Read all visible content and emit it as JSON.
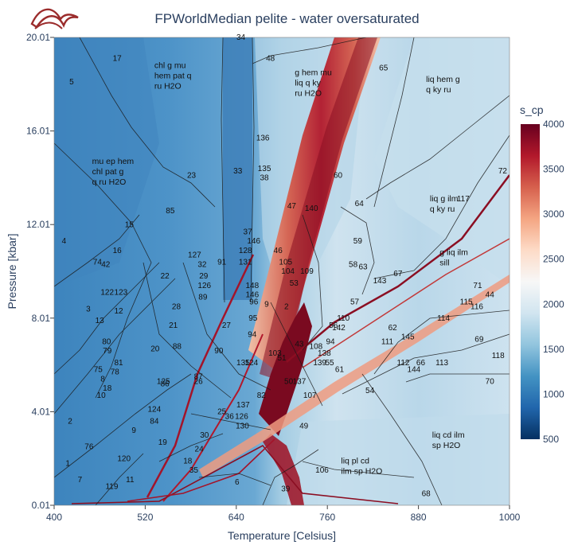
{
  "chart_data": {
    "type": "heatmap",
    "title": "FPWorldMedian pelite - water oversaturated",
    "xlabel": "Temperature [Celsius]",
    "ylabel": "Pressure [kbar]",
    "xlim": [
      400,
      1000
    ],
    "ylim": [
      0.01,
      20.01
    ],
    "x_ticks": [
      "400",
      "520",
      "640",
      "760",
      "880",
      "1000"
    ],
    "y_ticks": [
      "0.01",
      "4.01",
      "8.01",
      "12.01",
      "16.01",
      "20.01"
    ],
    "colorbar": {
      "title": "s_cp",
      "range": [
        500,
        4000
      ],
      "ticks": [
        "500",
        "1000",
        "1500",
        "2000",
        "2500",
        "3000",
        "3500",
        "4000"
      ],
      "colorscale": [
        "#053061",
        "#2166ac",
        "#4393c3",
        "#92c5de",
        "#d1e5f0",
        "#f7f7f7",
        "#fddbc7",
        "#f4a582",
        "#d6604d",
        "#b2182b",
        "#67001f"
      ]
    },
    "grid": false,
    "field_labels": [
      {
        "text": "chl g mu\nhem pat q\nru H2O",
        "x": 532,
        "y": 18.7
      },
      {
        "text": "g hem mu\nliq q ky\nru H2O",
        "x": 717,
        "y": 18.4
      },
      {
        "text": "liq hem g\nq ky ru",
        "x": 890,
        "y": 18.1
      },
      {
        "text": "mu ep hem\nchl pat g\nq ru H2O",
        "x": 450,
        "y": 14.6
      },
      {
        "text": "liq g ilm\nq ky ru",
        "x": 895,
        "y": 13.0
      },
      {
        "text": "g liq ilm\nsill",
        "x": 908,
        "y": 10.7
      },
      {
        "text": "liq cd ilm\nsp H2O",
        "x": 898,
        "y": 2.9
      },
      {
        "text": "liq pl cd\nilm sp H2O",
        "x": 778,
        "y": 1.8
      }
    ],
    "field_numbers": [
      {
        "n": "34",
        "x": 646,
        "y": 19.9
      },
      {
        "n": "17",
        "x": 483,
        "y": 19.0
      },
      {
        "n": "48",
        "x": 685,
        "y": 19.0
      },
      {
        "n": "65",
        "x": 834,
        "y": 18.6
      },
      {
        "n": "5",
        "x": 423,
        "y": 18.0
      },
      {
        "n": "136",
        "x": 675,
        "y": 15.6
      },
      {
        "n": "135",
        "x": 677,
        "y": 14.3
      },
      {
        "n": "38",
        "x": 677,
        "y": 13.9
      },
      {
        "n": "23",
        "x": 581,
        "y": 14.0
      },
      {
        "n": "33",
        "x": 642,
        "y": 14.2
      },
      {
        "n": "60",
        "x": 774,
        "y": 14.0
      },
      {
        "n": "72",
        "x": 991,
        "y": 14.2
      },
      {
        "n": "117",
        "x": 939,
        "y": 13.0
      },
      {
        "n": "47",
        "x": 713,
        "y": 12.7
      },
      {
        "n": "140",
        "x": 739,
        "y": 12.6
      },
      {
        "n": "64",
        "x": 802,
        "y": 12.8
      },
      {
        "n": "85",
        "x": 553,
        "y": 12.5
      },
      {
        "n": "15",
        "x": 499,
        "y": 11.9
      },
      {
        "n": "4",
        "x": 413,
        "y": 11.2
      },
      {
        "n": "37",
        "x": 655,
        "y": 11.6
      },
      {
        "n": "16",
        "x": 483,
        "y": 10.8
      },
      {
        "n": "59",
        "x": 800,
        "y": 11.2
      },
      {
        "n": "146",
        "x": 663,
        "y": 11.2
      },
      {
        "n": "128",
        "x": 652,
        "y": 10.8
      },
      {
        "n": "46",
        "x": 695,
        "y": 10.8
      },
      {
        "n": "127",
        "x": 585,
        "y": 10.6
      },
      {
        "n": "131",
        "x": 652,
        "y": 10.3
      },
      {
        "n": "32",
        "x": 595,
        "y": 10.2
      },
      {
        "n": "91",
        "x": 621,
        "y": 10.3
      },
      {
        "n": "105",
        "x": 705,
        "y": 10.3
      },
      {
        "n": "74",
        "x": 457,
        "y": 10.3
      },
      {
        "n": "42",
        "x": 468,
        "y": 10.2
      },
      {
        "n": "58",
        "x": 794,
        "y": 10.2
      },
      {
        "n": "63",
        "x": 807,
        "y": 10.1
      },
      {
        "n": "104",
        "x": 708,
        "y": 9.9
      },
      {
        "n": "109",
        "x": 733,
        "y": 9.9
      },
      {
        "n": "22",
        "x": 546,
        "y": 9.7
      },
      {
        "n": "29",
        "x": 597,
        "y": 9.7
      },
      {
        "n": "67",
        "x": 853,
        "y": 9.8
      },
      {
        "n": "126",
        "x": 598,
        "y": 9.3
      },
      {
        "n": "143",
        "x": 829,
        "y": 9.5
      },
      {
        "n": "148",
        "x": 661,
        "y": 9.3
      },
      {
        "n": "53",
        "x": 716,
        "y": 9.4
      },
      {
        "n": "71",
        "x": 958,
        "y": 9.3
      },
      {
        "n": "122",
        "x": 470,
        "y": 9.0
      },
      {
        "n": "123",
        "x": 488,
        "y": 9.0
      },
      {
        "n": "146",
        "x": 661,
        "y": 8.9
      },
      {
        "n": "89",
        "x": 596,
        "y": 8.8
      },
      {
        "n": "44",
        "x": 974,
        "y": 8.9
      },
      {
        "n": "96",
        "x": 663,
        "y": 8.6
      },
      {
        "n": "9",
        "x": 680,
        "y": 8.5
      },
      {
        "n": "57",
        "x": 796,
        "y": 8.6
      },
      {
        "n": "115",
        "x": 943,
        "y": 8.6
      },
      {
        "n": "116",
        "x": 957,
        "y": 8.4
      },
      {
        "n": "3",
        "x": 445,
        "y": 8.3
      },
      {
        "n": "28",
        "x": 561,
        "y": 8.4
      },
      {
        "n": "12",
        "x": 485,
        "y": 8.2
      },
      {
        "n": "2",
        "x": 706,
        "y": 8.4
      },
      {
        "n": "95",
        "x": 662,
        "y": 7.9
      },
      {
        "n": "114",
        "x": 913,
        "y": 7.9
      },
      {
        "n": "13",
        "x": 460,
        "y": 7.8
      },
      {
        "n": "21",
        "x": 557,
        "y": 7.6
      },
      {
        "n": "27",
        "x": 627,
        "y": 7.6
      },
      {
        "n": "56",
        "x": 768,
        "y": 7.6
      },
      {
        "n": "142",
        "x": 775,
        "y": 7.5
      },
      {
        "n": "62",
        "x": 846,
        "y": 7.5
      },
      {
        "n": "110",
        "x": 781,
        "y": 7.9
      },
      {
        "n": "94",
        "x": 661,
        "y": 7.2
      },
      {
        "n": "145",
        "x": 866,
        "y": 7.1
      },
      {
        "n": "69",
        "x": 960,
        "y": 7.0
      },
      {
        "n": "80",
        "x": 469,
        "y": 6.9
      },
      {
        "n": "111",
        "x": 839,
        "y": 6.9
      },
      {
        "n": "88",
        "x": 562,
        "y": 6.7
      },
      {
        "n": "43",
        "x": 723,
        "y": 6.8
      },
      {
        "n": "108",
        "x": 745,
        "y": 6.7
      },
      {
        "n": "94",
        "x": 764,
        "y": 6.9
      },
      {
        "n": "20",
        "x": 533,
        "y": 6.6
      },
      {
        "n": "79",
        "x": 470,
        "y": 6.5
      },
      {
        "n": "90",
        "x": 617,
        "y": 6.5
      },
      {
        "n": "103",
        "x": 691,
        "y": 6.4
      },
      {
        "n": "138",
        "x": 756,
        "y": 6.4
      },
      {
        "n": "139",
        "x": 750,
        "y": 6.0
      },
      {
        "n": "118",
        "x": 985,
        "y": 6.3
      },
      {
        "n": "51",
        "x": 700,
        "y": 6.2
      },
      {
        "n": "55",
        "x": 763,
        "y": 6.0
      },
      {
        "n": "81",
        "x": 485,
        "y": 6.0
      },
      {
        "n": "112",
        "x": 860,
        "y": 6.0
      },
      {
        "n": "113",
        "x": 911,
        "y": 6.0
      },
      {
        "n": "135",
        "x": 649,
        "y": 6.0
      },
      {
        "n": "124",
        "x": 660,
        "y": 6.0
      },
      {
        "n": "66",
        "x": 883,
        "y": 6.0
      },
      {
        "n": "78",
        "x": 480,
        "y": 5.6
      },
      {
        "n": "75",
        "x": 458,
        "y": 5.7
      },
      {
        "n": "61",
        "x": 776,
        "y": 5.7
      },
      {
        "n": "144",
        "x": 874,
        "y": 5.7
      },
      {
        "n": "8",
        "x": 464,
        "y": 5.3
      },
      {
        "n": "87",
        "x": 590,
        "y": 5.4
      },
      {
        "n": "26",
        "x": 590,
        "y": 5.2
      },
      {
        "n": "125",
        "x": 544,
        "y": 5.2
      },
      {
        "n": "86",
        "x": 546,
        "y": 5.1
      },
      {
        "n": "137",
        "x": 723,
        "y": 5.2
      },
      {
        "n": "50",
        "x": 709,
        "y": 5.2
      },
      {
        "n": "70",
        "x": 974,
        "y": 5.2
      },
      {
        "n": "54",
        "x": 816,
        "y": 4.8
      },
      {
        "n": "107",
        "x": 737,
        "y": 4.6
      },
      {
        "n": "18",
        "x": 470,
        "y": 4.9
      },
      {
        "n": "82",
        "x": 673,
        "y": 4.6
      },
      {
        "n": "10",
        "x": 462,
        "y": 4.6
      },
      {
        "n": "124",
        "x": 532,
        "y": 4.0
      },
      {
        "n": "25",
        "x": 621,
        "y": 3.9
      },
      {
        "n": "36",
        "x": 631,
        "y": 3.7
      },
      {
        "n": "126",
        "x": 647,
        "y": 3.7
      },
      {
        "n": "137",
        "x": 649,
        "y": 4.2
      },
      {
        "n": "84",
        "x": 532,
        "y": 3.5
      },
      {
        "n": "130",
        "x": 648,
        "y": 3.3
      },
      {
        "n": "9",
        "x": 505,
        "y": 3.1
      },
      {
        "n": "2",
        "x": 421,
        "y": 3.5
      },
      {
        "n": "49",
        "x": 729,
        "y": 3.3
      },
      {
        "n": "30",
        "x": 598,
        "y": 2.9
      },
      {
        "n": "19",
        "x": 543,
        "y": 2.6
      },
      {
        "n": "76",
        "x": 446,
        "y": 2.4
      },
      {
        "n": "24",
        "x": 591,
        "y": 2.3
      },
      {
        "n": "120",
        "x": 492,
        "y": 1.9
      },
      {
        "n": "18",
        "x": 576,
        "y": 1.8
      },
      {
        "n": "1",
        "x": 418,
        "y": 1.7
      },
      {
        "n": "35",
        "x": 584,
        "y": 1.4
      },
      {
        "n": "11",
        "x": 500,
        "y": 1.0
      },
      {
        "n": "7",
        "x": 434,
        "y": 1.0
      },
      {
        "n": "6",
        "x": 641,
        "y": 0.9
      },
      {
        "n": "106",
        "x": 753,
        "y": 1.4
      },
      {
        "n": "119",
        "x": 476,
        "y": 0.7
      },
      {
        "n": "39",
        "x": 705,
        "y": 0.6
      },
      {
        "n": "68",
        "x": 890,
        "y": 0.4
      }
    ]
  }
}
